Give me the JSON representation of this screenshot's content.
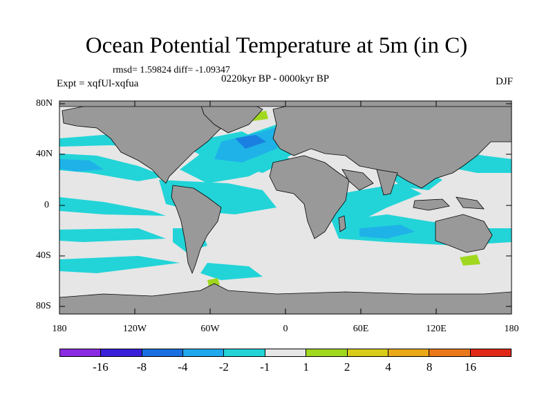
{
  "map": {
    "title": "Ocean Potential Temperature at 5m (in C)",
    "stats": "rmsd= 1.59824 diff= -1.09347",
    "experiment": "Expt = xqfUl-xqfua",
    "period": "0220kyr BP - 0000kyr BP",
    "season": "DJF",
    "y_ticks": [
      "80N",
      "40N",
      "0",
      "40S",
      "80S"
    ],
    "x_ticks": [
      "180",
      "120W",
      "60W",
      "0",
      "60E",
      "120E",
      "180"
    ],
    "colors": {
      "land": "#999999",
      "neutral": "#e6e6e6",
      "minus2_minus1": "#22d4d8",
      "minus4_minus2": "#1fb2e8",
      "minus8_minus4": "#1a7fe0",
      "minus16_minus8": "#3030d0",
      "plus1_plus2": "#a0d820"
    }
  },
  "colorbar": {
    "colors": [
      "#8a2be2",
      "#3a20d8",
      "#1a70e0",
      "#20a8ec",
      "#22d4d8",
      "#e6e6e6",
      "#a0d820",
      "#d8cc18",
      "#e8a818",
      "#e8781a",
      "#e02818"
    ],
    "labels": [
      "-16",
      "-8",
      "-4",
      "-2",
      "-1",
      "1",
      "2",
      "4",
      "8",
      "16"
    ]
  }
}
